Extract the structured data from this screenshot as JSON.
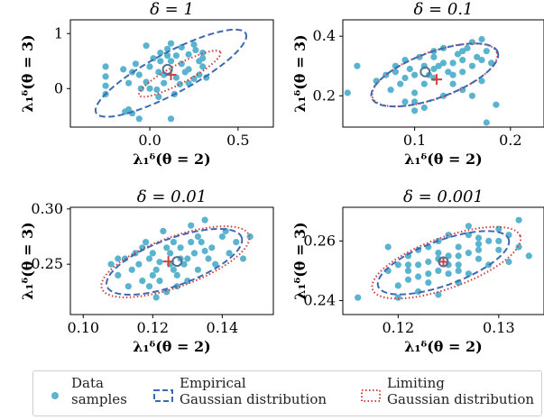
{
  "colors": {
    "data_samples": "#5bb4cf",
    "empirical": "#3d6ab3",
    "limiting": "#d0413f",
    "empirical_mean": "#55708f",
    "limiting_mean": "#d0413f"
  },
  "legend": {
    "items": [
      {
        "label": "Data\nsamples",
        "kind": "scatter"
      },
      {
        "label": "Empirical\nGaussian distribution",
        "kind": "dashed-ellipse"
      },
      {
        "label": "Limiting\nGaussian distribution",
        "kind": "dotted-ellipse"
      }
    ]
  },
  "chart_data": [
    {
      "type": "scatter",
      "title": "δ = 1",
      "xlabel": "λ₁ᵟ(θ = 2)",
      "ylabel": "λ₁ᵟ(θ = 3)",
      "xlim": [
        -0.45,
        0.7
      ],
      "ylim": [
        -0.7,
        1.25
      ],
      "xticks": [
        0.0,
        0.5
      ],
      "xtick_labels": [
        "0.0",
        "0.5"
      ],
      "yticks": [
        0,
        1
      ],
      "ytick_labels": [
        "0",
        "1"
      ],
      "empirical_mean": [
        0.1,
        0.35
      ],
      "limiting_mean": [
        0.12,
        0.25
      ],
      "empirical_ellipse": {
        "center": [
          0.12,
          0.28
        ],
        "rx": 0.48,
        "ry": 0.37,
        "angle_deg": 28
      },
      "limiting_ellipse": {
        "center": [
          0.17,
          0.27
        ],
        "rx": 0.26,
        "ry": 0.17,
        "angle_deg": 28
      },
      "points": [
        [
          -0.25,
          0.4
        ],
        [
          -0.25,
          0.22
        ],
        [
          -0.25,
          0.05
        ],
        [
          -0.25,
          -0.1
        ],
        [
          -0.15,
          0.35
        ],
        [
          -0.1,
          0.3
        ],
        [
          -0.12,
          0.1
        ],
        [
          -0.06,
          0.25
        ],
        [
          -0.02,
          0.12
        ],
        [
          0.0,
          0.4
        ],
        [
          0.02,
          0.55
        ],
        [
          0.05,
          0.3
        ],
        [
          0.06,
          0.65
        ],
        [
          0.1,
          0.72
        ],
        [
          0.12,
          0.5
        ],
        [
          0.15,
          0.6
        ],
        [
          0.18,
          0.45
        ],
        [
          0.2,
          0.3
        ],
        [
          0.22,
          0.1
        ],
        [
          0.22,
          0.62
        ],
        [
          0.25,
          0.8
        ],
        [
          0.28,
          0.5
        ],
        [
          0.3,
          0.4
        ],
        [
          0.3,
          0.55
        ],
        [
          0.32,
          0.2
        ],
        [
          0.3,
          0.65
        ],
        [
          0.18,
          0.75
        ],
        [
          0.06,
          0.5
        ],
        [
          0.08,
          0.1
        ],
        [
          0.14,
          -0.1
        ],
        [
          -0.14,
          -0.42
        ],
        [
          -0.12,
          -0.38
        ],
        [
          -0.1,
          -0.45
        ],
        [
          -0.06,
          -0.55
        ],
        [
          0.12,
          -0.55
        ],
        [
          0.05,
          -0.15
        ],
        [
          0.0,
          0.0
        ],
        [
          -0.05,
          0.0
        ],
        [
          0.15,
          0.2
        ],
        [
          0.22,
          0.35
        ],
        [
          0.26,
          0.7
        ],
        [
          0.12,
          0.82
        ],
        [
          -0.02,
          0.78
        ],
        [
          0.08,
          0.25
        ],
        [
          0.17,
          0.08
        ],
        [
          0.25,
          0.18
        ],
        [
          0.28,
          0.25
        ],
        [
          0.04,
          -0.02
        ],
        [
          -0.08,
          0.45
        ],
        [
          0.1,
          0.6
        ]
      ]
    },
    {
      "type": "scatter",
      "title": "δ = 0.1",
      "xlabel": "λ₁ᵟ(θ = 2)",
      "ylabel": "λ₁ᵟ(θ = 3)",
      "xlim": [
        0.025,
        0.235
      ],
      "ylim": [
        0.095,
        0.455
      ],
      "xticks": [
        0.1,
        0.2
      ],
      "xtick_labels": [
        "0.1",
        "0.2"
      ],
      "yticks": [
        0.2,
        0.4
      ],
      "ytick_labels": [
        "0.2",
        "0.4"
      ],
      "empirical_mean": [
        0.111,
        0.28
      ],
      "limiting_mean": [
        0.123,
        0.255
      ],
      "empirical_ellipse": {
        "center": [
          0.121,
          0.27
        ],
        "rx": 0.07,
        "ry": 0.077,
        "angle_deg": 20
      },
      "limiting_ellipse": {
        "center": [
          0.121,
          0.27
        ],
        "rx": 0.069,
        "ry": 0.078,
        "angle_deg": 20
      },
      "points": [
        [
          0.03,
          0.21
        ],
        [
          0.04,
          0.3
        ],
        [
          0.06,
          0.25
        ],
        [
          0.07,
          0.27
        ],
        [
          0.08,
          0.3
        ],
        [
          0.09,
          0.32
        ],
        [
          0.1,
          0.27
        ],
        [
          0.1,
          0.18
        ],
        [
          0.11,
          0.3
        ],
        [
          0.12,
          0.33
        ],
        [
          0.12,
          0.29
        ],
        [
          0.13,
          0.31
        ],
        [
          0.14,
          0.27
        ],
        [
          0.15,
          0.35
        ],
        [
          0.16,
          0.38
        ],
        [
          0.17,
          0.39
        ],
        [
          0.175,
          0.35
        ],
        [
          0.18,
          0.31
        ],
        [
          0.17,
          0.25
        ],
        [
          0.15,
          0.22
        ],
        [
          0.13,
          0.2
        ],
        [
          0.11,
          0.16
        ],
        [
          0.1,
          0.15
        ],
        [
          0.09,
          0.18
        ],
        [
          0.14,
          0.24
        ],
        [
          0.12,
          0.26
        ],
        [
          0.08,
          0.28
        ],
        [
          0.16,
          0.3
        ],
        [
          0.13,
          0.36
        ],
        [
          0.11,
          0.24
        ],
        [
          0.105,
          0.33
        ],
        [
          0.095,
          0.29
        ],
        [
          0.175,
          0.11
        ],
        [
          0.185,
          0.17
        ],
        [
          0.14,
          0.31
        ],
        [
          0.15,
          0.32
        ],
        [
          0.15,
          0.28
        ],
        [
          0.125,
          0.3
        ],
        [
          0.115,
          0.27
        ],
        [
          0.085,
          0.24
        ],
        [
          0.075,
          0.22
        ],
        [
          0.16,
          0.2
        ],
        [
          0.165,
          0.33
        ],
        [
          0.12,
          0.35
        ],
        [
          0.135,
          0.28
        ],
        [
          0.145,
          0.34
        ],
        [
          0.09,
          0.26
        ],
        [
          0.1,
          0.21
        ],
        [
          0.155,
          0.36
        ],
        [
          0.17,
          0.32
        ]
      ]
    },
    {
      "type": "scatter",
      "title": "δ = 0.01",
      "xlabel": "λ₁ᵟ(θ = 2)",
      "ylabel": "λ₁ᵟ(θ = 3)",
      "xlim": [
        0.0963,
        0.1547
      ],
      "ylim": [
        0.2045,
        0.3015
      ],
      "xticks": [
        0.1,
        0.12,
        0.14
      ],
      "xtick_labels": [
        "0.10",
        "0.12",
        "0.14"
      ],
      "yticks": [
        0.25,
        0.3
      ],
      "ytick_labels": [
        "0.25",
        "0.30"
      ],
      "empirical_mean": [
        0.127,
        0.2525
      ],
      "limiting_mean": [
        0.1245,
        0.2525
      ],
      "empirical_ellipse": {
        "center": [
          0.1262,
          0.2522
        ],
        "rx": 0.0206,
        "ry": 0.0212,
        "angle_deg": 20
      },
      "limiting_ellipse": {
        "center": [
          0.1265,
          0.2522
        ],
        "rx": 0.0225,
        "ry": 0.0225,
        "angle_deg": 20
      },
      "points": [
        [
          0.108,
          0.25
        ],
        [
          0.11,
          0.24
        ],
        [
          0.112,
          0.255
        ],
        [
          0.113,
          0.23
        ],
        [
          0.114,
          0.245
        ],
        [
          0.115,
          0.26
        ],
        [
          0.116,
          0.25
        ],
        [
          0.117,
          0.235
        ],
        [
          0.118,
          0.27
        ],
        [
          0.119,
          0.255
        ],
        [
          0.12,
          0.26
        ],
        [
          0.121,
          0.245
        ],
        [
          0.122,
          0.235
        ],
        [
          0.123,
          0.28
        ],
        [
          0.124,
          0.265
        ],
        [
          0.125,
          0.25
        ],
        [
          0.126,
          0.27
        ],
        [
          0.127,
          0.24
        ],
        [
          0.128,
          0.265
        ],
        [
          0.129,
          0.25
        ],
        [
          0.13,
          0.255
        ],
        [
          0.131,
          0.285
        ],
        [
          0.132,
          0.26
        ],
        [
          0.133,
          0.245
        ],
        [
          0.134,
          0.27
        ],
        [
          0.135,
          0.29
        ],
        [
          0.136,
          0.255
        ],
        [
          0.137,
          0.265
        ],
        [
          0.138,
          0.25
        ],
        [
          0.14,
          0.275
        ],
        [
          0.142,
          0.26
        ],
        [
          0.144,
          0.27
        ],
        [
          0.146,
          0.255
        ],
        [
          0.148,
          0.275
        ],
        [
          0.119,
          0.23
        ],
        [
          0.121,
          0.22
        ],
        [
          0.124,
          0.225
        ],
        [
          0.127,
          0.23
        ],
        [
          0.13,
          0.235
        ],
        [
          0.125,
          0.26
        ],
        [
          0.122,
          0.252
        ],
        [
          0.128,
          0.255
        ],
        [
          0.133,
          0.275
        ],
        [
          0.117,
          0.265
        ],
        [
          0.141,
          0.28
        ],
        [
          0.11,
          0.255
        ],
        [
          0.135,
          0.262
        ],
        [
          0.126,
          0.245
        ],
        [
          0.12,
          0.24
        ],
        [
          0.131,
          0.27
        ]
      ]
    },
    {
      "type": "scatter",
      "title": "δ = 0.001",
      "xlabel": "λ₁ᵟ(θ = 2)",
      "ylabel": "λ₁ᵟ(θ = 3)",
      "xlim": [
        0.1145,
        0.1345
      ],
      "ylim": [
        0.2353,
        0.2713
      ],
      "xticks": [
        0.12,
        0.13
      ],
      "xtick_labels": [
        "0.12",
        "0.13"
      ],
      "yticks": [
        0.24,
        0.26
      ],
      "ytick_labels": [
        "0.24",
        "0.26"
      ],
      "empirical_mean": [
        0.1245,
        0.253
      ],
      "limiting_mean": [
        0.1245,
        0.253
      ],
      "empirical_ellipse": {
        "center": [
          0.1245,
          0.2527
        ],
        "rx": 0.0069,
        "ry": 0.0075,
        "angle_deg": 20
      },
      "limiting_ellipse": {
        "center": [
          0.1248,
          0.2527
        ],
        "rx": 0.0078,
        "ry": 0.0085,
        "angle_deg": 20
      },
      "points": [
        [
          0.116,
          0.241
        ],
        [
          0.119,
          0.258
        ],
        [
          0.12,
          0.252
        ],
        [
          0.12,
          0.245
        ],
        [
          0.121,
          0.255
        ],
        [
          0.121,
          0.25
        ],
        [
          0.122,
          0.257
        ],
        [
          0.122,
          0.248
        ],
        [
          0.123,
          0.253
        ],
        [
          0.123,
          0.246
        ],
        [
          0.124,
          0.25
        ],
        [
          0.124,
          0.26
        ],
        [
          0.125,
          0.255
        ],
        [
          0.125,
          0.252
        ],
        [
          0.126,
          0.258
        ],
        [
          0.126,
          0.25
        ],
        [
          0.127,
          0.262
        ],
        [
          0.127,
          0.256
        ],
        [
          0.128,
          0.259
        ],
        [
          0.128,
          0.254
        ],
        [
          0.129,
          0.26
        ],
        [
          0.13,
          0.257
        ],
        [
          0.131,
          0.262
        ],
        [
          0.132,
          0.258
        ],
        [
          0.133,
          0.255
        ],
        [
          0.132,
          0.267
        ],
        [
          0.13,
          0.264
        ],
        [
          0.131,
          0.253
        ],
        [
          0.122,
          0.243
        ],
        [
          0.12,
          0.241
        ],
        [
          0.124,
          0.242
        ],
        [
          0.126,
          0.246
        ],
        [
          0.125,
          0.262
        ],
        [
          0.123,
          0.258
        ],
        [
          0.121,
          0.247
        ],
        [
          0.127,
          0.249
        ],
        [
          0.129,
          0.252
        ],
        [
          0.124,
          0.254
        ],
        [
          0.122,
          0.252
        ],
        [
          0.126,
          0.255
        ],
        [
          0.125,
          0.249
        ],
        [
          0.128,
          0.261
        ],
        [
          0.119,
          0.25
        ],
        [
          0.123,
          0.249
        ],
        [
          0.127,
          0.265
        ],
        [
          0.124,
          0.256
        ],
        [
          0.126,
          0.252
        ],
        [
          0.121,
          0.252
        ],
        [
          0.128,
          0.257
        ],
        [
          0.13,
          0.26
        ]
      ]
    }
  ]
}
